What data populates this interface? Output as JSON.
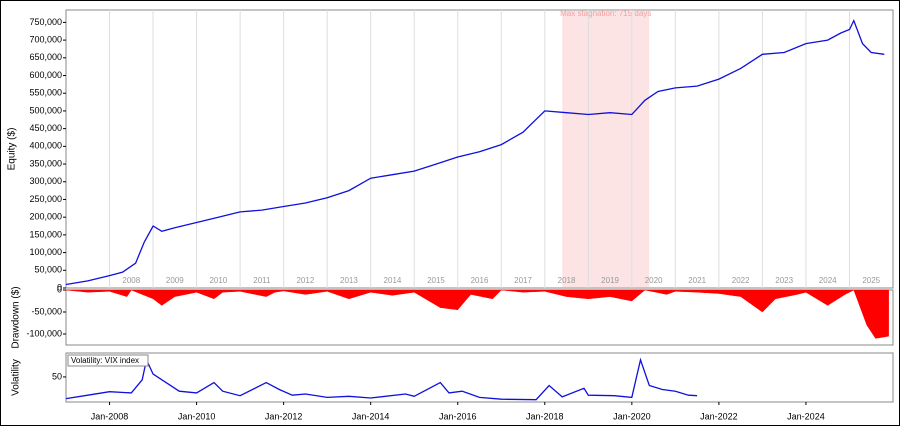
{
  "chart_data": [
    {
      "type": "line",
      "ylabel": "Equity ($)",
      "color": "#1010dd",
      "annotation": "Max stagnation: 715 days",
      "stagnation": [
        2018.4,
        2020.4
      ],
      "xlim": [
        2007,
        2026
      ],
      "ylim": [
        0,
        785000
      ],
      "xticks": [
        {
          "value": 2008,
          "label": "2008"
        },
        {
          "value": 2009,
          "label": "2009"
        },
        {
          "value": 2010,
          "label": "2010"
        },
        {
          "value": 2011,
          "label": "2011"
        },
        {
          "value": 2012,
          "label": "2012"
        },
        {
          "value": 2013,
          "label": "2013"
        },
        {
          "value": 2014,
          "label": "2014"
        },
        {
          "value": 2015,
          "label": "2015"
        },
        {
          "value": 2016,
          "label": "2016"
        },
        {
          "value": 2017,
          "label": "2017"
        },
        {
          "value": 2018,
          "label": "2018"
        },
        {
          "value": 2019,
          "label": "2019"
        },
        {
          "value": 2020,
          "label": "2020"
        },
        {
          "value": 2021,
          "label": "2021"
        },
        {
          "value": 2022,
          "label": "2022"
        },
        {
          "value": 2023,
          "label": "2023"
        },
        {
          "value": 2024,
          "label": "2024"
        },
        {
          "value": 2025,
          "label": "2025"
        }
      ],
      "yticks": [
        0,
        {
          "value": 50000,
          "label": "50,000"
        },
        {
          "value": 100000,
          "label": "100,000"
        },
        {
          "value": 150000,
          "label": "150,000"
        },
        {
          "value": 200000,
          "label": "200,000"
        },
        {
          "value": 250000,
          "label": "250,000"
        },
        {
          "value": 300000,
          "label": "300,000"
        },
        {
          "value": 350000,
          "label": "350,000"
        },
        {
          "value": 400000,
          "label": "400,000"
        },
        {
          "value": 450000,
          "label": "450,000"
        },
        {
          "value": 500000,
          "label": "500,000"
        },
        {
          "value": 550000,
          "label": "550,000"
        },
        {
          "value": 600000,
          "label": "600,000"
        },
        {
          "value": 650000,
          "label": "650,000"
        },
        {
          "value": 700000,
          "label": "700,000"
        },
        {
          "value": 750000,
          "label": "750,000"
        }
      ],
      "x": [
        2007.0,
        2007.5,
        2008.0,
        2008.3,
        2008.6,
        2008.8,
        2009.0,
        2009.2,
        2009.5,
        2010.0,
        2010.5,
        2011.0,
        2011.5,
        2012.0,
        2012.5,
        2013.0,
        2013.5,
        2014.0,
        2014.5,
        2015.0,
        2015.5,
        2016.0,
        2016.5,
        2017.0,
        2017.5,
        2018.0,
        2018.5,
        2019.0,
        2019.5,
        2020.0,
        2020.3,
        2020.6,
        2021.0,
        2021.5,
        2022.0,
        2022.5,
        2023.0,
        2023.5,
        2024.0,
        2024.5,
        2024.8,
        2025.0,
        2025.1,
        2025.3,
        2025.5,
        2025.8
      ],
      "values": [
        10000,
        20000,
        35000,
        45000,
        70000,
        130000,
        175000,
        160000,
        170000,
        185000,
        200000,
        215000,
        220000,
        230000,
        240000,
        255000,
        275000,
        310000,
        320000,
        330000,
        350000,
        370000,
        385000,
        405000,
        440000,
        500000,
        495000,
        490000,
        495000,
        490000,
        530000,
        555000,
        565000,
        570000,
        590000,
        620000,
        660000,
        665000,
        690000,
        700000,
        720000,
        730000,
        755000,
        690000,
        665000,
        660000
      ]
    },
    {
      "type": "area",
      "ylabel": "Drawdown ($)",
      "color": "#ff0000",
      "xlim": [
        2007,
        2026
      ],
      "ylim": [
        -125000,
        0
      ],
      "yticks": [
        0,
        {
          "value": -50000,
          "label": "-50,000"
        },
        {
          "value": -100000,
          "label": "-100,000"
        }
      ],
      "x": [
        2007.0,
        2007.5,
        2008.0,
        2008.4,
        2008.5,
        2009.0,
        2009.2,
        2009.5,
        2010.0,
        2010.4,
        2010.6,
        2011.0,
        2011.6,
        2011.8,
        2012.0,
        2012.5,
        2013.0,
        2013.5,
        2014.0,
        2014.5,
        2015.0,
        2015.6,
        2016.0,
        2016.3,
        2016.8,
        2017.0,
        2017.5,
        2018.0,
        2018.5,
        2019.0,
        2019.5,
        2020.0,
        2020.3,
        2020.8,
        2021.0,
        2021.5,
        2022.0,
        2022.5,
        2023.0,
        2023.3,
        2023.8,
        2024.0,
        2024.5,
        2024.9,
        2025.1,
        2025.4,
        2025.6,
        2025.9
      ],
      "values": [
        0,
        -5000,
        -3000,
        -15000,
        0,
        -20000,
        -35000,
        -15000,
        -5000,
        -20000,
        -5000,
        -3000,
        -15000,
        -5000,
        -2000,
        -10000,
        -3000,
        -20000,
        -5000,
        -12000,
        -5000,
        -40000,
        -45000,
        -10000,
        -20000,
        0,
        -5000,
        -3000,
        -15000,
        -20000,
        -15000,
        -25000,
        0,
        -10000,
        -3000,
        -5000,
        -8000,
        -15000,
        -50000,
        -20000,
        -10000,
        -5000,
        -35000,
        -10000,
        0,
        -80000,
        -110000,
        -105000
      ]
    },
    {
      "type": "line",
      "ylabel": "Volatility",
      "annotation": "Volatility: VIX index",
      "color": "#1010dd",
      "xlim": [
        2007,
        2026
      ],
      "ylim": [
        6,
        92
      ],
      "yticks": [
        50
      ],
      "xticks": [
        {
          "value": 2008,
          "label": "Jan-2008"
        },
        {
          "value": 2010,
          "label": "Jan-2010"
        },
        {
          "value": 2012,
          "label": "Jan-2012"
        },
        {
          "value": 2014,
          "label": "Jan-2014"
        },
        {
          "value": 2016,
          "label": "Jan-2016"
        },
        {
          "value": 2018,
          "label": "Jan-2018"
        },
        {
          "value": 2020,
          "label": "Jan-2020"
        },
        {
          "value": 2022,
          "label": "Jan-2022"
        },
        {
          "value": 2024,
          "label": "Jan-2024"
        }
      ],
      "x": [
        2007.0,
        2007.5,
        2008.0,
        2008.5,
        2008.75,
        2008.85,
        2009.0,
        2009.3,
        2009.6,
        2010.0,
        2010.4,
        2010.6,
        2011.0,
        2011.6,
        2011.9,
        2012.2,
        2012.5,
        2013.0,
        2013.5,
        2014.0,
        2014.8,
        2015.0,
        2015.6,
        2015.8,
        2016.1,
        2016.5,
        2017.0,
        2017.8,
        2018.1,
        2018.4,
        2018.9,
        2019.0,
        2019.6,
        2020.0,
        2020.2,
        2020.4,
        2020.7,
        2021.0,
        2021.3,
        2021.5
      ],
      "values": [
        12,
        18,
        24,
        22,
        45,
        80,
        55,
        40,
        25,
        22,
        40,
        25,
        17,
        40,
        28,
        18,
        20,
        14,
        16,
        13,
        20,
        16,
        40,
        22,
        25,
        14,
        11,
        10,
        35,
        15,
        30,
        18,
        17,
        14,
        80,
        35,
        28,
        25,
        18,
        17
      ]
    }
  ]
}
